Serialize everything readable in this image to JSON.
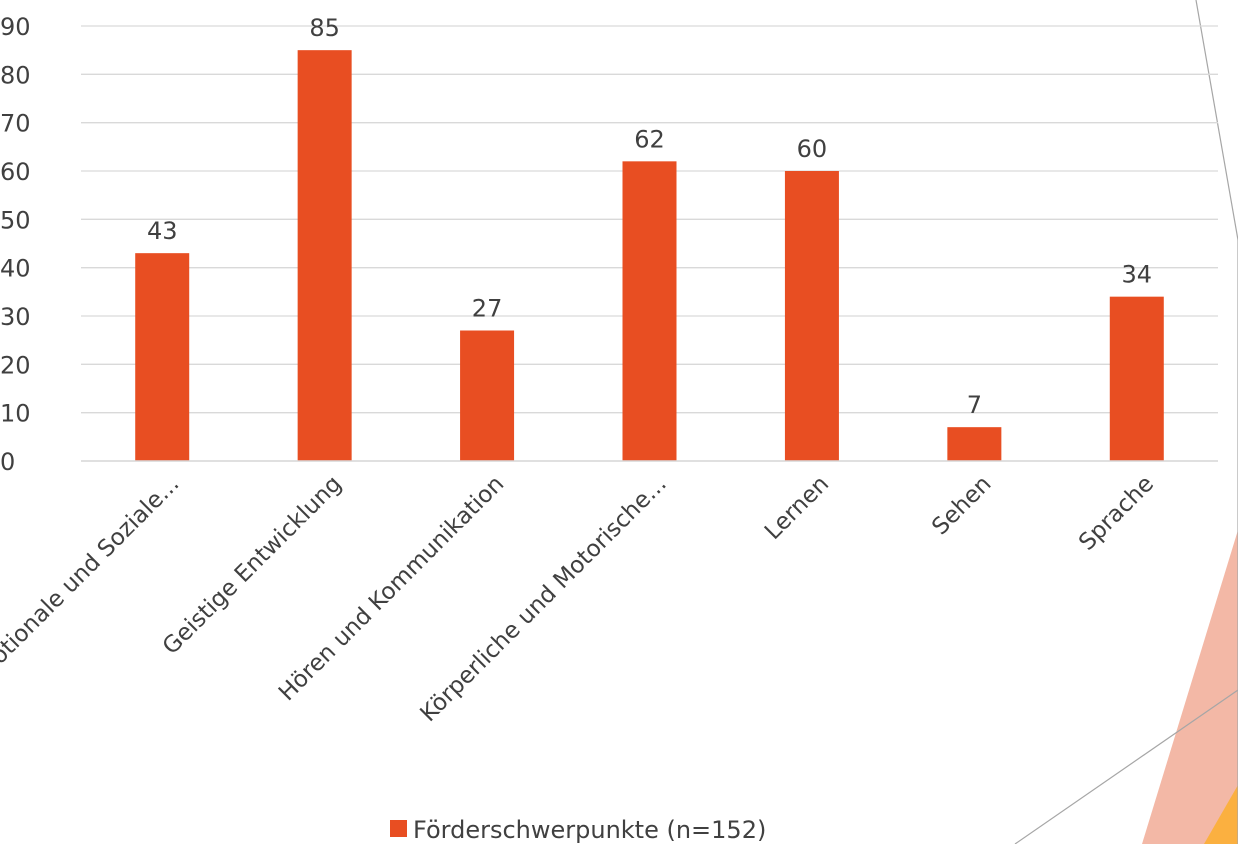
{
  "chart_data": {
    "type": "bar",
    "categories": [
      "Emotionale und Soziale...",
      "Geistige Entwicklung",
      "Hören und Kommunikation",
      "Körperliche und Motorische...",
      "Lernen",
      "Sehen",
      "Sprache"
    ],
    "series": [
      {
        "name": "Förderschwerpunkte (n=152)",
        "values": [
          43,
          85,
          27,
          62,
          60,
          7,
          34
        ]
      }
    ],
    "ylim": [
      0,
      90
    ],
    "yticks": [
      0,
      10,
      20,
      30,
      40,
      50,
      60,
      70,
      80,
      90
    ],
    "grid": true,
    "legend_position": "bottom"
  },
  "colors": {
    "bar": "#E84E22",
    "grid": "#D9D9D9",
    "text": "#404040",
    "decor_pink": "#F3B8A6",
    "decor_orange": "#FBB040",
    "decor_line": "#A6A6A6"
  }
}
